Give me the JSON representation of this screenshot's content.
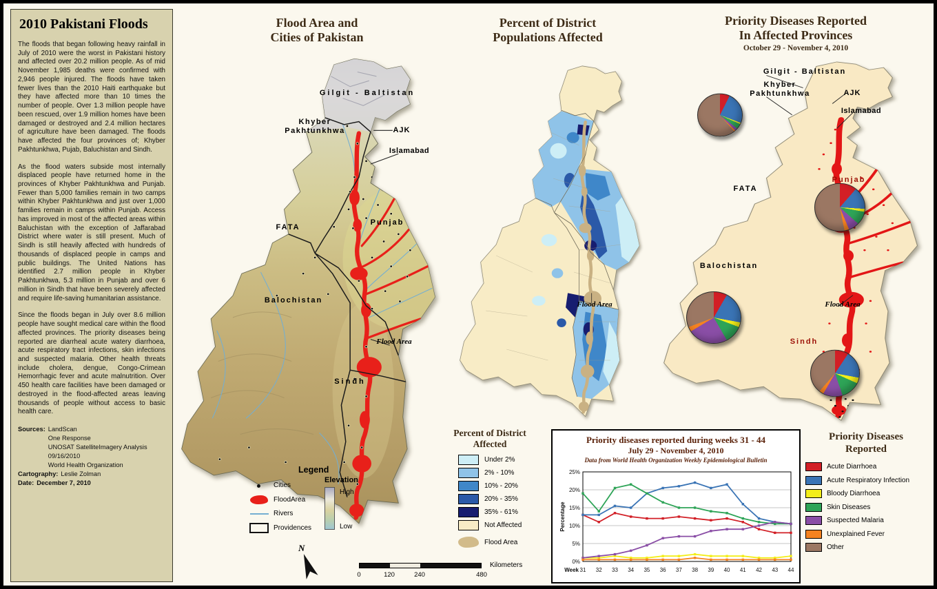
{
  "panel": {
    "title": "2010 Pakistani Floods",
    "paragraphs": [
      "The floods that began following heavy rainfall in July of 2010 were the worst in Pakistani history and affected over 20.2 million people.  As of mid November 1,985 deaths were confirmed with 2,946 people injured.  The floods have taken fewer lives than the 2010 Haiti earthquake but they have affected more than 10 times the number of people.  Over 1.3 million people have been rescued, over 1.9 million homes have been damaged or destroyed and 2.4 million hectares of agriculture have been damaged.  The floods have affected the four provinces of; Khyber Pakhtunkhwa, Pujab, Baluchistan and Sindh.",
      "As the flood waters subside most internally displaced people have returned home in the provinces of Khyber Pakhtunkhwa and Punjab.  Fewer than 5,000 families remain in two camps within Khyber Pakhtunkhwa and just over 1,000 families remain in camps within Punjab.  Access has improved in most of the affected areas within Baluchistan with the exception of Jaffarabad District where water is still present.  Much of Sindh is still heavily affected with hundreds of thousands of displaced people in camps and public buildings.  The United Nations has identified 2.7 million people in Khyber Pakhtunkhwa, 5.3 million in Punjab and over 6 million in Sindh that have been severely affected and require life-saving humanitarian assistance.",
      "Since the floods began in July over 8.6 million people have sought medical care within the flood affected provinces.  The priority diseases being reported are diarrheal acute watery diarrhoea, acute respiratory tract infections, skin infections and suspected malaria.  Other health threats include cholera, dengue, Congo-Crimean Hemorrhagic fever and acute malnutrition.  Over 450 health care facilities have been damaged or destroyed in the flood-affected areas leaving thousands of people without access to basic health care."
    ],
    "sources_label": "Sources:",
    "sources": [
      "LandScan",
      "One Response",
      "UNOSAT SatelliteImagery Analysis",
      "09/16/2010",
      "World Health Organization"
    ],
    "cartography_label": "Cartography:",
    "cartography": "Leslie Zolman",
    "date_label": "Date:",
    "date": "December 7, 2010"
  },
  "map1": {
    "title_1": "Flood Area and",
    "title_2": "Cities of Pakistan",
    "labels": {
      "gilgit": "Gilgit - Baltistan",
      "khyber": "Khyber\nPakhtunkhwa",
      "ajk": "AJK",
      "islamabad": "Islamabad",
      "fata": "FATA",
      "punjab": "Punjab",
      "balochistan": "Balochistan",
      "sindh": "Sindh",
      "flood_area": "Flood Area"
    },
    "legend": {
      "title": "Legend",
      "cities": "Cities",
      "flood": "FloodArea",
      "rivers": "Rivers",
      "provinces": "Providences",
      "elevation_title": "Elevation",
      "high": "High",
      "low": "Low"
    },
    "scale": {
      "t0": "0",
      "t1": "120",
      "t2": "240",
      "t3": "480",
      "unit": "Kilometers"
    },
    "compass": "N",
    "flood_color": "#e8201a"
  },
  "map2": {
    "title_1": "Percent of District",
    "title_2": "Populations Affected",
    "flood_label": "Flood Area",
    "legend": {
      "title_1": "Percent of District",
      "title_2": "Affected",
      "items": [
        {
          "label": "Under 2%",
          "color": "#cdeef6"
        },
        {
          "label": "2% - 10%",
          "color": "#8fc3e8"
        },
        {
          "label": "10% - 20%",
          "color": "#3f87c9"
        },
        {
          "label": "20% - 35%",
          "color": "#2b59a8"
        },
        {
          "label": "35% - 61%",
          "color": "#171d70"
        },
        {
          "label": "Not Affected",
          "color": "#f8ecc6"
        }
      ],
      "flood_item": "Flood Area",
      "flood_color": "#d2bb8a"
    }
  },
  "map3": {
    "title_1": "Priority Diseases Reported",
    "title_2": "In Affected Provinces",
    "subtitle": "October 29 - November 4, 2010",
    "labels": {
      "gilgit": "Gilgit - Baltistan",
      "khyber": "Khyber\nPakhtunkhwa",
      "ajk": "AJK",
      "islamabad": "Islamabad",
      "fata": "FATA",
      "punjab": "Punjab",
      "balochistan": "Balochistan",
      "sindh": "Sindh",
      "flood_area": "Flood Area"
    }
  },
  "diseases": {
    "title_1": "Priority Diseases",
    "title_2": "Reported",
    "items": [
      {
        "label": "Acute Diarrhoea",
        "color": "#d21f26"
      },
      {
        "label": "Acute Respiratory Infection",
        "color": "#3a74b5"
      },
      {
        "label": "Bloody Diarrhoea",
        "color": "#f3ee19"
      },
      {
        "label": "Skin Diseases",
        "color": "#2ea457"
      },
      {
        "label": "Suspected Malaria",
        "color": "#8a4ea6"
      },
      {
        "label": "Unexplained Fever",
        "color": "#f58220"
      },
      {
        "label": "Other",
        "color": "#9b7763"
      }
    ]
  },
  "chart_data": [
    {
      "type": "line",
      "title": "Priority diseases reported during weeks 31 - 44",
      "subtitle": "July 29 - November 4, 2010",
      "note": "Data from World Health Organization  Weekly Epidemiological Bulletin",
      "xlabel": "Week",
      "ylabel": "Percentage",
      "x": [
        31,
        32,
        33,
        34,
        35,
        36,
        37,
        38,
        39,
        40,
        41,
        42,
        43,
        44
      ],
      "ylim": [
        0,
        25
      ],
      "yticks": [
        0,
        5,
        10,
        15,
        20,
        25
      ],
      "grid": "horizontal",
      "legend_position": "right-external",
      "series": [
        {
          "name": "Acute Diarrhoea",
          "color": "#d21f26",
          "values": [
            13,
            11,
            13.5,
            12.5,
            12,
            12,
            12.5,
            12,
            11.5,
            12,
            11,
            9,
            8,
            8
          ]
        },
        {
          "name": "Acute Respiratory Infection",
          "color": "#3a74b5",
          "values": [
            13,
            13,
            15.5,
            15,
            19,
            20.5,
            21,
            22,
            20.5,
            21.5,
            16,
            12,
            11,
            10.5
          ]
        },
        {
          "name": "Bloody Diarrhoea",
          "color": "#f3ee19",
          "values": [
            1,
            1,
            1.5,
            1,
            1,
            1.5,
            1.5,
            2,
            1.5,
            1.5,
            1.5,
            1,
            1,
            1.5
          ]
        },
        {
          "name": "Skin Diseases",
          "color": "#2ea457",
          "values": [
            19,
            14,
            20.5,
            21.5,
            19,
            16.5,
            15,
            15,
            14,
            13.5,
            12,
            11,
            10.5,
            10.5
          ]
        },
        {
          "name": "Suspected Malaria",
          "color": "#8a4ea6",
          "values": [
            1,
            1.5,
            2,
            3,
            4.5,
            6.5,
            7,
            7,
            8.5,
            9,
            9,
            10,
            11,
            10.5
          ]
        },
        {
          "name": "Unexplained Fever",
          "color": "#f58220",
          "values": [
            0.5,
            0.5,
            0.5,
            0.5,
            0.5,
            0.5,
            0.5,
            1,
            0.5,
            0.5,
            0.5,
            0.5,
            0.5,
            0.5
          ]
        }
      ]
    },
    {
      "type": "pie",
      "title": "Khyber Pakhtunkhwa",
      "segments": [
        {
          "label": "Acute Diarrhoea",
          "color": "#d21f26",
          "value": 7
        },
        {
          "label": "Acute Respiratory Infection",
          "color": "#3a74b5",
          "value": 24
        },
        {
          "label": "Bloody Diarrhoea",
          "color": "#f3ee19",
          "value": 1
        },
        {
          "label": "Skin Diseases",
          "color": "#2ea457",
          "value": 4
        },
        {
          "label": "Suspected Malaria",
          "color": "#8a4ea6",
          "value": 2
        },
        {
          "label": "Unexplained Fever",
          "color": "#f58220",
          "value": 1
        },
        {
          "label": "Other",
          "color": "#9b7763",
          "value": 61
        }
      ]
    },
    {
      "type": "pie",
      "title": "Punjab",
      "segments": [
        {
          "label": "Acute Diarrhoea",
          "color": "#d21f26",
          "value": 11
        },
        {
          "label": "Acute Respiratory Infection",
          "color": "#3a74b5",
          "value": 15
        },
        {
          "label": "Bloody Diarrhoea",
          "color": "#f3ee19",
          "value": 2
        },
        {
          "label": "Skin Diseases",
          "color": "#2ea457",
          "value": 9
        },
        {
          "label": "Suspected Malaria",
          "color": "#8a4ea6",
          "value": 7
        },
        {
          "label": "Unexplained Fever",
          "color": "#f58220",
          "value": 3
        },
        {
          "label": "Other",
          "color": "#9b7763",
          "value": 53
        }
      ]
    },
    {
      "type": "pie",
      "title": "Balochistan",
      "segments": [
        {
          "label": "Acute Diarrhoea",
          "color": "#d21f26",
          "value": 8
        },
        {
          "label": "Acute Respiratory Infection",
          "color": "#3a74b5",
          "value": 20
        },
        {
          "label": "Bloody Diarrhoea",
          "color": "#f3ee19",
          "value": 3
        },
        {
          "label": "Skin Diseases",
          "color": "#2ea457",
          "value": 11
        },
        {
          "label": "Suspected Malaria",
          "color": "#8a4ea6",
          "value": 24
        },
        {
          "label": "Unexplained Fever",
          "color": "#f58220",
          "value": 3
        },
        {
          "label": "Other",
          "color": "#9b7763",
          "value": 31
        }
      ]
    },
    {
      "type": "pie",
      "title": "Sindh",
      "segments": [
        {
          "label": "Acute Diarrhoea",
          "color": "#d21f26",
          "value": 9
        },
        {
          "label": "Acute Respiratory Infection",
          "color": "#3a74b5",
          "value": 19
        },
        {
          "label": "Bloody Diarrhoea",
          "color": "#f3ee19",
          "value": 4
        },
        {
          "label": "Skin Diseases",
          "color": "#2ea457",
          "value": 13
        },
        {
          "label": "Suspected Malaria",
          "color": "#8a4ea6",
          "value": 13
        },
        {
          "label": "Unexplained Fever",
          "color": "#f58220",
          "value": 3
        },
        {
          "label": "Other",
          "color": "#9b7763",
          "value": 39
        }
      ]
    }
  ]
}
